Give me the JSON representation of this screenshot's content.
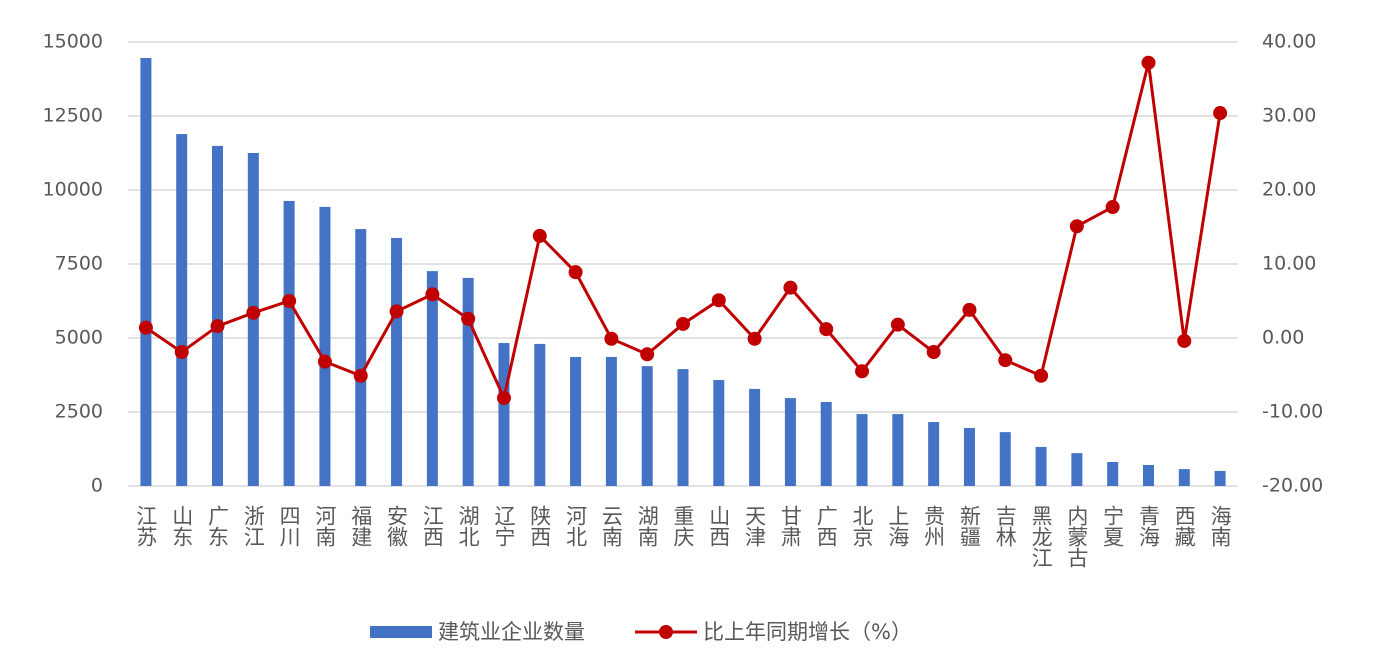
{
  "chart_data": {
    "type": "bar",
    "categories": [
      "江苏",
      "山东",
      "广东",
      "浙江",
      "四川",
      "河南",
      "福建",
      "安徽",
      "江西",
      "湖北",
      "辽宁",
      "陕西",
      "河北",
      "云南",
      "湖南",
      "重庆",
      "山西",
      "天津",
      "甘肃",
      "广西",
      "北京",
      "上海",
      "贵州",
      "新疆",
      "吉林",
      "黑龙江",
      "内蒙古",
      "宁夏",
      "青海",
      "西藏",
      "海南"
    ],
    "series": [
      {
        "name": "建筑业企业数量",
        "type": "bar",
        "color": "#4472c4",
        "values": [
          14460,
          11890,
          11490,
          11250,
          9630,
          9430,
          8680,
          8380,
          7260,
          7030,
          4830,
          4800,
          4360,
          4360,
          4050,
          3950,
          3580,
          3280,
          2970,
          2840,
          2430,
          2430,
          2160,
          1960,
          1820,
          1320,
          1110,
          810,
          710,
          570,
          510
        ]
      },
      {
        "name": "比上年同期增长（%）",
        "type": "line",
        "axis": "y2",
        "color": "#c00000",
        "values": [
          1.4,
          -1.9,
          1.6,
          3.4,
          5.0,
          -3.2,
          -5.1,
          3.6,
          5.9,
          2.6,
          -8.1,
          13.8,
          8.9,
          -0.1,
          -2.2,
          1.9,
          5.1,
          -0.1,
          6.8,
          1.2,
          -4.5,
          1.8,
          -1.9,
          3.8,
          -3.0,
          -5.1,
          15.1,
          17.7,
          37.2,
          -0.4,
          30.4
        ]
      }
    ],
    "ylim": [
      0,
      15000
    ],
    "yticks": [
      0,
      2500,
      5000,
      7500,
      10000,
      12500,
      15000
    ],
    "y2lim": [
      -20,
      40
    ],
    "y2ticks": [
      {
        "value": -20,
        "label": "-20.00"
      },
      {
        "value": -10,
        "label": "-10.00"
      },
      {
        "value": 0,
        "label": "0.00"
      },
      {
        "value": 10,
        "label": "10.00"
      },
      {
        "value": 20,
        "label": "20.00"
      },
      {
        "value": 30,
        "label": "30.00"
      },
      {
        "value": 40,
        "label": "40.00"
      }
    ],
    "grid": true,
    "legend": "bottom"
  }
}
